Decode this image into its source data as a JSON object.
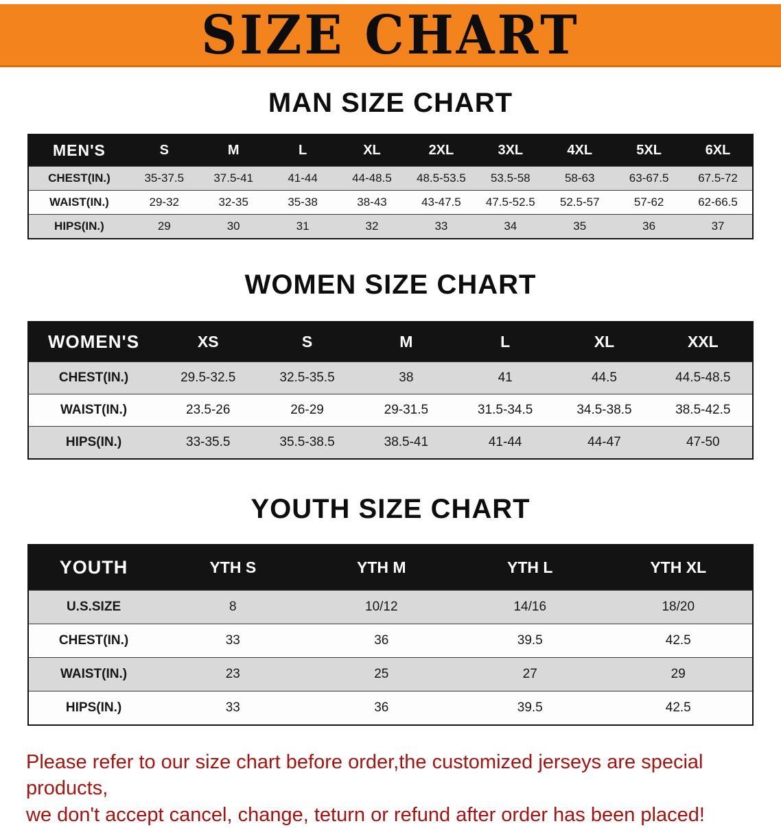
{
  "banner": {
    "title": "SIZE CHART"
  },
  "colors": {
    "banner_bg": "#f2831d",
    "table_header_bg": "#131313",
    "row_alt_gray": "#d9d9d9",
    "notice_red": "#a51310"
  },
  "sections": [
    {
      "heading": "MAN SIZE CHART",
      "table": {
        "header": [
          "MEN'S",
          "S",
          "M",
          "L",
          "XL",
          "2XL",
          "3XL",
          "4XL",
          "5XL",
          "6XL"
        ],
        "rows": [
          [
            "CHEST(IN.)",
            "35-37.5",
            "37.5-41",
            "41-44",
            "44-48.5",
            "48.5-53.5",
            "53.5-58",
            "58-63",
            "63-67.5",
            "67.5-72"
          ],
          [
            "WAIST(IN.)",
            "29-32",
            "32-35",
            "35-38",
            "38-43",
            "43-47.5",
            "47.5-52.5",
            "52.5-57",
            "57-62",
            "62-66.5"
          ],
          [
            "HIPS(IN.)",
            "29",
            "30",
            "31",
            "32",
            "33",
            "34",
            "35",
            "36",
            "37"
          ]
        ]
      }
    },
    {
      "heading": "WOMEN SIZE CHART",
      "table": {
        "header": [
          "WOMEN'S",
          "XS",
          "S",
          "M",
          "L",
          "XL",
          "XXL"
        ],
        "rows": [
          [
            "CHEST(IN.)",
            "29.5-32.5",
            "32.5-35.5",
            "38",
            "41",
            "44.5",
            "44.5-48.5"
          ],
          [
            "WAIST(IN.)",
            "23.5-26",
            "26-29",
            "29-31.5",
            "31.5-34.5",
            "34.5-38.5",
            "38.5-42.5"
          ],
          [
            "HIPS(IN.)",
            "33-35.5",
            "35.5-38.5",
            "38.5-41",
            "41-44",
            "44-47",
            "47-50"
          ]
        ]
      }
    },
    {
      "heading": "YOUTH SIZE CHART",
      "table": {
        "header": [
          "YOUTH",
          "YTH S",
          "YTH M",
          "YTH L",
          "YTH XL"
        ],
        "rows": [
          [
            "U.S.SIZE",
            "8",
            "10/12",
            "14/16",
            "18/20"
          ],
          [
            "CHEST(IN.)",
            "33",
            "36",
            "39.5",
            "42.5"
          ],
          [
            "WAIST(IN.)",
            "23",
            "25",
            "27",
            "29"
          ],
          [
            "HIPS(IN.)",
            "33",
            "36",
            "39.5",
            "42.5"
          ]
        ]
      }
    }
  ],
  "footer": {
    "line1": "Please refer to our size chart before order,the customized jerseys are special products,",
    "line2": "we don't accept cancel, change, teturn or refund after order has been placed!"
  }
}
